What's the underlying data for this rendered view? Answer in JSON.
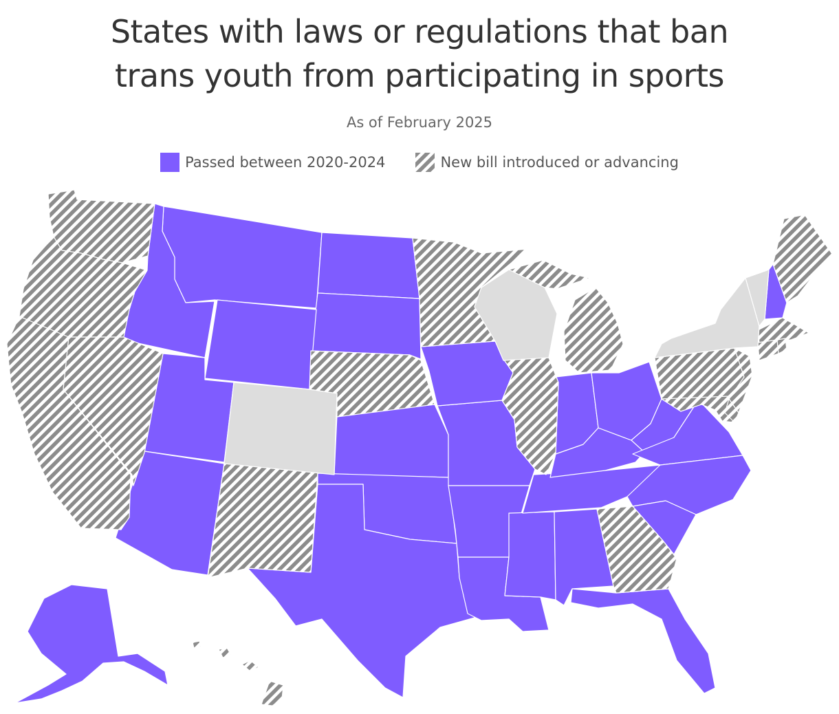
{
  "title": {
    "line1": "States with laws or regulations that ban",
    "line2": "trans youth from participating in sports"
  },
  "subtitle": "As of February 2025",
  "colors": {
    "passed": "#7f5cff",
    "hatch_stripe": "#8c8c8c",
    "hatch_bg": "#ffffff",
    "none": "#dddddd"
  },
  "legend": [
    {
      "key": "passed",
      "label": "Passed between 2020-2024"
    },
    {
      "key": "introduced",
      "label": "New bill introduced or advancing"
    }
  ],
  "map_data": {
    "passed": [
      "MT",
      "ND",
      "SD",
      "ID",
      "WY",
      "UT",
      "AZ",
      "KS",
      "OK",
      "TX",
      "MO",
      "IA",
      "AR",
      "LA",
      "MS",
      "AL",
      "TN",
      "KY",
      "IN",
      "OH",
      "WV",
      "VA",
      "NC",
      "SC",
      "FL",
      "NH",
      "AK"
    ],
    "introduced": [
      "WA",
      "OR",
      "CA",
      "NV",
      "NM",
      "NE",
      "MN",
      "MI",
      "IL",
      "GA",
      "PA",
      "NJ",
      "MD",
      "DE",
      "MA",
      "CT",
      "RI",
      "ME",
      "HI"
    ],
    "none": [
      "CO",
      "WI",
      "NY",
      "VT"
    ]
  }
}
